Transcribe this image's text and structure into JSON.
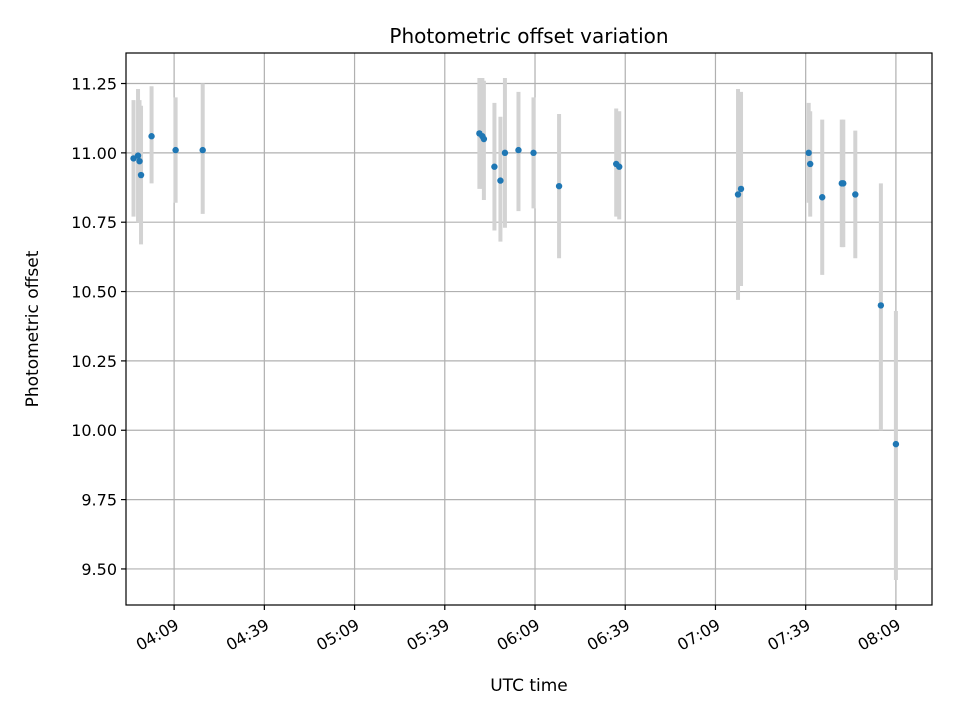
{
  "chart_data": {
    "type": "scatter",
    "title": "Photometric offset variation",
    "xlabel": "UTC time",
    "ylabel": "Photometric offset",
    "grid": true,
    "xlim": [
      "03:53",
      "08:21"
    ],
    "ylim": [
      9.37,
      11.36
    ],
    "x_ticks": [
      "04:09",
      "04:39",
      "05:09",
      "05:39",
      "06:09",
      "06:39",
      "07:09",
      "07:39",
      "08:09"
    ],
    "y_ticks": [
      9.5,
      9.75,
      10.0,
      10.25,
      10.5,
      10.75,
      11.0,
      11.25
    ],
    "y_tick_labels": [
      "9.50",
      "9.75",
      "10.00",
      "10.25",
      "10.50",
      "10.75",
      "11.00",
      "11.25"
    ],
    "colors": {
      "points": "#1f77b4",
      "error_bars": "#d3d3d3",
      "grid": "#b0b0b0"
    },
    "series": [
      {
        "points": [
          {
            "x": "03:55:30",
            "y": 10.98,
            "lo": 10.77,
            "hi": 11.19
          },
          {
            "x": "03:57:00",
            "y": 10.99,
            "lo": 10.75,
            "hi": 11.23
          },
          {
            "x": "03:57:30",
            "y": 10.97,
            "lo": 10.75,
            "hi": 11.19
          },
          {
            "x": "03:58:00",
            "y": 10.92,
            "lo": 10.67,
            "hi": 11.17
          },
          {
            "x": "04:01:30",
            "y": 11.06,
            "lo": 10.89,
            "hi": 11.24
          },
          {
            "x": "04:09:30",
            "y": 11.01,
            "lo": 10.82,
            "hi": 11.2
          },
          {
            "x": "04:18:30",
            "y": 11.01,
            "lo": 10.78,
            "hi": 11.25
          },
          {
            "x": "05:50:30",
            "y": 11.07,
            "lo": 10.87,
            "hi": 11.27
          },
          {
            "x": "05:51:30",
            "y": 11.06,
            "lo": 10.87,
            "hi": 11.27
          },
          {
            "x": "05:52:00",
            "y": 11.05,
            "lo": 10.83,
            "hi": 11.26
          },
          {
            "x": "05:55:30",
            "y": 10.95,
            "lo": 10.72,
            "hi": 11.18
          },
          {
            "x": "05:57:30",
            "y": 10.9,
            "lo": 10.68,
            "hi": 11.13
          },
          {
            "x": "05:59:00",
            "y": 11.0,
            "lo": 10.73,
            "hi": 11.27
          },
          {
            "x": "06:03:30",
            "y": 11.01,
            "lo": 10.79,
            "hi": 11.22
          },
          {
            "x": "06:08:30",
            "y": 11.0,
            "lo": 10.8,
            "hi": 11.2
          },
          {
            "x": "06:17:00",
            "y": 10.88,
            "lo": 10.62,
            "hi": 11.14
          },
          {
            "x": "06:36:00",
            "y": 10.96,
            "lo": 10.77,
            "hi": 11.16
          },
          {
            "x": "06:37:00",
            "y": 10.95,
            "lo": 10.76,
            "hi": 11.15
          },
          {
            "x": "07:16:30",
            "y": 10.85,
            "lo": 10.47,
            "hi": 11.23
          },
          {
            "x": "07:17:30",
            "y": 10.87,
            "lo": 10.52,
            "hi": 11.22
          },
          {
            "x": "07:40:00",
            "y": 11.0,
            "lo": 10.82,
            "hi": 11.18
          },
          {
            "x": "07:40:30",
            "y": 10.96,
            "lo": 10.77,
            "hi": 11.15
          },
          {
            "x": "07:44:30",
            "y": 10.84,
            "lo": 10.56,
            "hi": 11.12
          },
          {
            "x": "07:51:00",
            "y": 10.89,
            "lo": 10.66,
            "hi": 11.12
          },
          {
            "x": "07:51:30",
            "y": 10.89,
            "lo": 10.66,
            "hi": 11.12
          },
          {
            "x": "07:55:30",
            "y": 10.85,
            "lo": 10.62,
            "hi": 11.08
          },
          {
            "x": "08:04:00",
            "y": 10.45,
            "lo": 10.0,
            "hi": 10.89
          },
          {
            "x": "08:09:00",
            "y": 9.95,
            "lo": 9.46,
            "hi": 10.43
          }
        ]
      }
    ]
  }
}
